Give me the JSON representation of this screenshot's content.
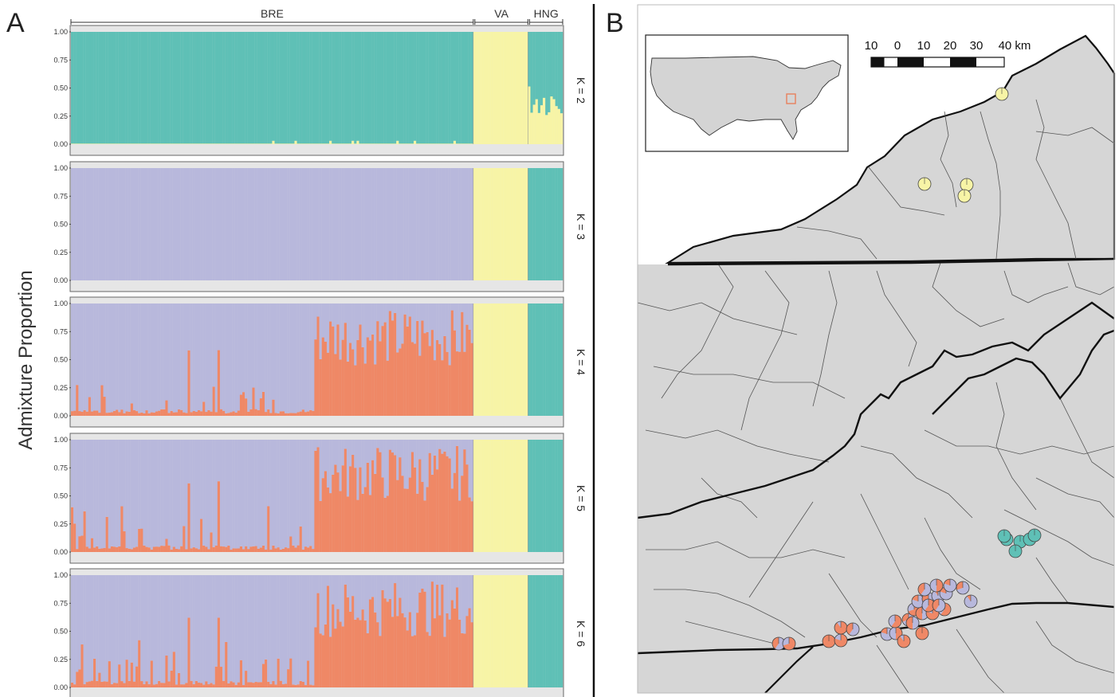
{
  "panel_a_letter": "A",
  "panel_b_letter": "B",
  "chart_data": [
    {
      "type": "bar",
      "stacked": true,
      "ylabel": "Admixture Proportion",
      "ylim": [
        0,
        1
      ],
      "yticks": [
        "0.00",
        "0.25",
        "0.50",
        "0.75",
        "1.00"
      ],
      "groups": [
        {
          "name": "BRE",
          "n": 162
        },
        {
          "name": "VA",
          "n": 22
        },
        {
          "name": "HNG",
          "n": 14
        }
      ],
      "colors": {
        "purple": "#b8b8dc",
        "red": "#ef8866",
        "yellow": "#f7f4a6",
        "teal": "#5fc0b6",
        "blue": "#6aa4d8"
      },
      "panels": [
        {
          "label": "K = 2",
          "components": [
            {
              "color": "teal",
              "BRE": 0.99,
              "VA": 0.0,
              "HNG": 0.6
            },
            {
              "color": "yellow",
              "BRE": 0.01,
              "VA": 1.0,
              "HNG": 0.4
            }
          ]
        },
        {
          "label": "K = 3",
          "components": [
            {
              "color": "purple",
              "BRE": 0.99,
              "VA": 0.0,
              "HNG": 0.0
            },
            {
              "color": "yellow",
              "BRE": 0.01,
              "VA": 1.0,
              "HNG": 0.0
            },
            {
              "color": "teal",
              "BRE": 0.0,
              "VA": 0.0,
              "HNG": 1.0
            }
          ]
        },
        {
          "label": "K = 4",
          "components": [
            {
              "color": "red",
              "BRE_first": 0.03,
              "BRE_last": 0.75,
              "VA": 0.0,
              "HNG": 0.0
            },
            {
              "color": "purple",
              "BRE_first": 0.97,
              "BRE_last": 0.25,
              "VA": 0.0,
              "HNG": 0.0
            },
            {
              "color": "yellow",
              "VA": 1.0
            },
            {
              "color": "teal",
              "HNG": 1.0
            }
          ]
        },
        {
          "label": "K = 5",
          "components": [
            {
              "color": "red",
              "BRE_first": 0.03,
              "BRE_last": 0.72,
              "VA": 0.0,
              "HNG": 0.0
            },
            {
              "color": "purple",
              "BRE_first": 0.97,
              "BRE_last": 0.28,
              "VA": 0.0,
              "HNG": 0.0
            },
            {
              "color": "yellow",
              "VA": 1.0
            },
            {
              "color": "teal",
              "HNG": 1.0
            }
          ]
        },
        {
          "label": "K = 6",
          "components": [
            {
              "color": "red",
              "BRE_first": 0.03,
              "BRE_last": 0.72,
              "VA": 0.0,
              "HNG": 0.0
            },
            {
              "color": "purple",
              "BRE_first": 0.97,
              "BRE_last": 0.28,
              "VA": 0.0,
              "HNG": 0.0
            },
            {
              "color": "yellow",
              "VA": 1.0
            },
            {
              "color": "teal",
              "HNG": 1.0
            }
          ]
        }
      ]
    },
    {
      "type": "map",
      "scale_bar": [
        "10",
        "0",
        "10",
        "20",
        "30",
        "40 km"
      ],
      "pie_colors": [
        "#f7f4a6",
        "#5fc0b6",
        "#b8b8dc",
        "#ef8866"
      ]
    }
  ]
}
